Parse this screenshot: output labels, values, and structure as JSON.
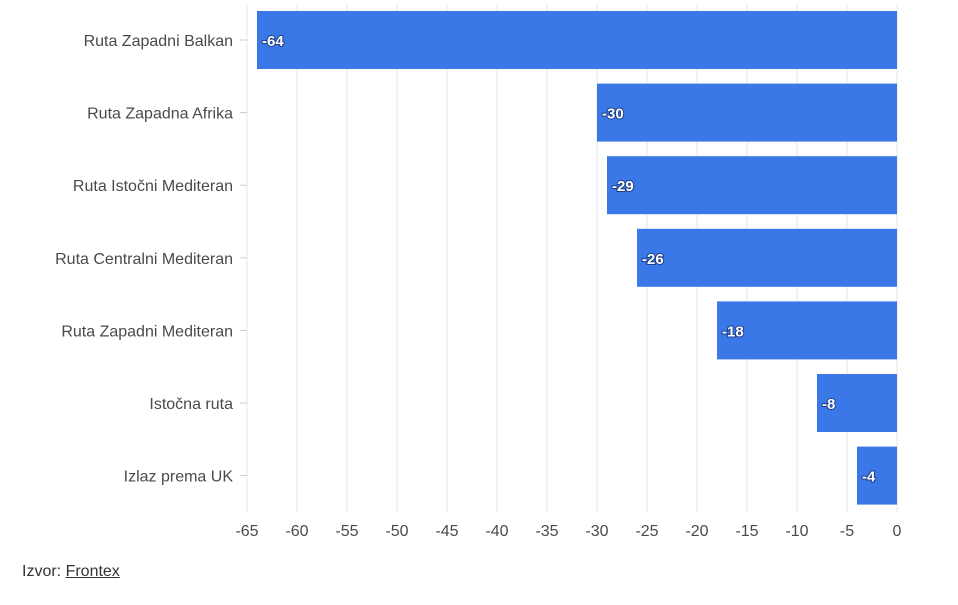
{
  "chart_data": {
    "type": "bar",
    "orientation": "horizontal",
    "categories": [
      "Ruta Zapadni Balkan",
      "Ruta Zapadna Afrika",
      "Ruta Istočni Mediteran",
      "Ruta Centralni Mediteran",
      "Ruta Zapadni Mediteran",
      "Istočna ruta",
      "Izlaz prema UK"
    ],
    "values": [
      -64,
      -30,
      -29,
      -26,
      -18,
      -8,
      -4
    ],
    "data_labels": [
      "-64",
      "-30",
      "-29",
      "-26",
      "-18",
      "-8",
      "-4"
    ],
    "xlim": [
      -65,
      0
    ],
    "x_ticks": [
      -65,
      -60,
      -55,
      -50,
      -45,
      -40,
      -35,
      -30,
      -25,
      -20,
      -15,
      -10,
      -5,
      0
    ],
    "grid": true,
    "bar_color": "#3b78e7"
  },
  "source": {
    "prefix": "Izvor: ",
    "link_text": "Frontex"
  }
}
